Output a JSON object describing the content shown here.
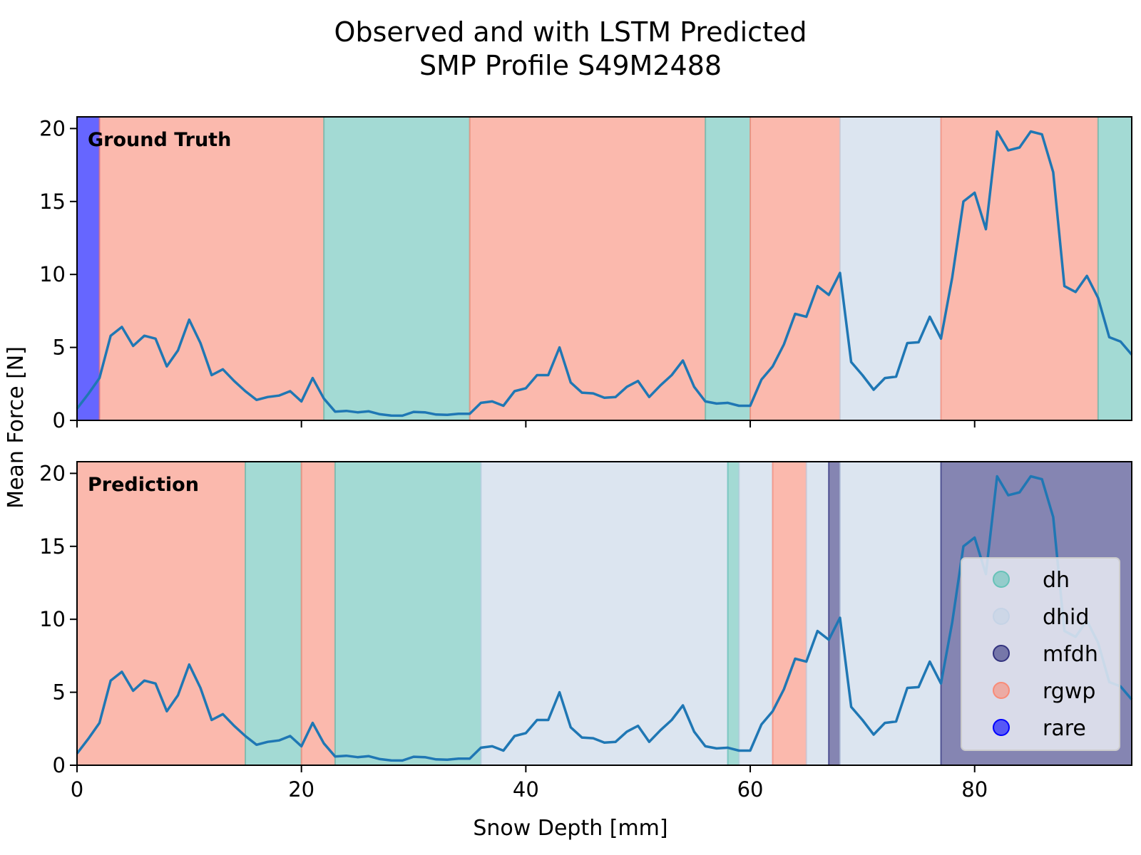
{
  "chart_data": {
    "type": "line",
    "title": [
      "Observed and with LSTM Predicted",
      "SMP Profile S49M2488"
    ],
    "xlabel": "Snow Depth [mm]",
    "ylabel": "Mean Force [N]",
    "xlim": [
      0,
      94
    ],
    "ylim": [
      0,
      20.8
    ],
    "xticks": [
      0,
      20,
      40,
      60,
      80
    ],
    "yticks": [
      0,
      5,
      10,
      15,
      20
    ],
    "grid": false,
    "legend_position": "lower-right",
    "classes": [
      {
        "name": "dh",
        "color": "#66c2b8"
      },
      {
        "name": "dhid",
        "color": "#c5d3e6"
      },
      {
        "name": "mfdh",
        "color": "#33337f"
      },
      {
        "name": "rgwp",
        "color": "#f98b77"
      },
      {
        "name": "rare",
        "color": "#0000ff"
      }
    ],
    "panels": [
      {
        "label": "Ground Truth",
        "segments": [
          {
            "start": 0,
            "end": 2,
            "class": "rare"
          },
          {
            "start": 2,
            "end": 22,
            "class": "rgwp"
          },
          {
            "start": 22,
            "end": 35,
            "class": "dh"
          },
          {
            "start": 35,
            "end": 56,
            "class": "rgwp"
          },
          {
            "start": 56,
            "end": 60,
            "class": "dh"
          },
          {
            "start": 60,
            "end": 68,
            "class": "rgwp"
          },
          {
            "start": 68,
            "end": 77,
            "class": "dhid"
          },
          {
            "start": 77,
            "end": 91,
            "class": "rgwp"
          },
          {
            "start": 91,
            "end": 94,
            "class": "dh"
          }
        ]
      },
      {
        "label": "Prediction",
        "segments": [
          {
            "start": 0,
            "end": 15,
            "class": "rgwp"
          },
          {
            "start": 15,
            "end": 20,
            "class": "dh"
          },
          {
            "start": 20,
            "end": 23,
            "class": "rgwp"
          },
          {
            "start": 23,
            "end": 36,
            "class": "dh"
          },
          {
            "start": 36,
            "end": 58,
            "class": "dhid"
          },
          {
            "start": 58,
            "end": 59,
            "class": "dh"
          },
          {
            "start": 59,
            "end": 62,
            "class": "dhid"
          },
          {
            "start": 62,
            "end": 65,
            "class": "rgwp"
          },
          {
            "start": 65,
            "end": 67,
            "class": "dhid"
          },
          {
            "start": 67,
            "end": 68,
            "class": "mfdh"
          },
          {
            "start": 68,
            "end": 77,
            "class": "dhid"
          },
          {
            "start": 77,
            "end": 94,
            "class": "mfdh"
          }
        ]
      }
    ],
    "series": [
      {
        "x": [
          0,
          1,
          2,
          3,
          4,
          5,
          6,
          7,
          8,
          9,
          10,
          11,
          12,
          13,
          14,
          15,
          16,
          17,
          18,
          19,
          20,
          21,
          22,
          23,
          24,
          25,
          26,
          27,
          28,
          29,
          30,
          31,
          32,
          33,
          34,
          35,
          36,
          37,
          38,
          39,
          40,
          41,
          42,
          43,
          44,
          45,
          46,
          47,
          48,
          49,
          50,
          51,
          52,
          53,
          54,
          55,
          56,
          57,
          58,
          59,
          60,
          61,
          62,
          63,
          64,
          65,
          66,
          67,
          68,
          69,
          70,
          71,
          72,
          73,
          74,
          75,
          76,
          77,
          78,
          79,
          80,
          81,
          82,
          83,
          84,
          85,
          86,
          87,
          88,
          89,
          90,
          91,
          92,
          93,
          94
        ],
        "y": [
          0.8,
          1.8,
          2.9,
          5.8,
          6.4,
          5.1,
          5.8,
          5.6,
          3.7,
          4.8,
          6.9,
          5.3,
          3.1,
          3.5,
          2.7,
          2.0,
          1.4,
          1.6,
          1.7,
          2.0,
          1.3,
          2.9,
          1.5,
          0.6,
          0.65,
          0.55,
          0.62,
          0.42,
          0.33,
          0.32,
          0.58,
          0.55,
          0.4,
          0.38,
          0.45,
          0.45,
          1.2,
          1.3,
          1.0,
          2.0,
          2.2,
          3.1,
          3.1,
          5.0,
          2.6,
          1.9,
          1.85,
          1.55,
          1.6,
          2.3,
          2.7,
          1.6,
          2.4,
          3.1,
          4.1,
          2.3,
          1.3,
          1.15,
          1.2,
          1.0,
          1.0,
          2.8,
          3.7,
          5.2,
          7.3,
          7.1,
          9.2,
          8.6,
          10.1,
          4.0,
          3.1,
          2.1,
          2.9,
          3.0,
          5.3,
          5.35,
          7.1,
          5.6,
          9.8,
          15.0,
          15.6,
          13.1,
          19.8,
          18.5,
          18.7,
          19.8,
          19.6,
          17.0,
          9.2,
          8.8,
          9.9,
          8.4,
          5.7,
          5.4,
          4.5
        ]
      }
    ]
  }
}
